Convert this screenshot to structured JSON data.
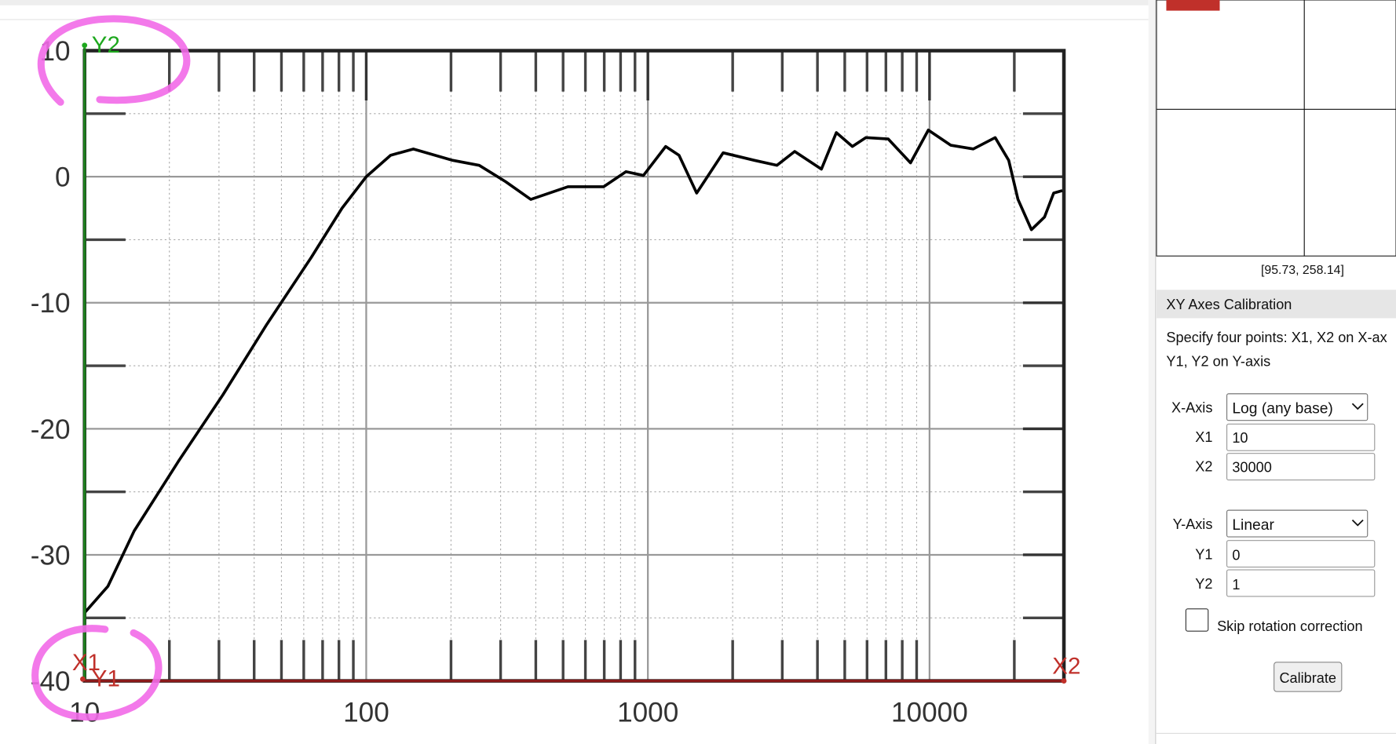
{
  "chart_data": {
    "type": "line",
    "xscale": "log",
    "grid": true,
    "color": "#000000",
    "x": [
      10,
      12.1,
      15,
      21.5,
      31,
      44.4,
      63.8,
      82,
      100,
      122,
      147,
      203,
      252,
      313,
      384,
      520,
      696,
      836,
      964,
      1157,
      1290,
      1490,
      1850,
      2390,
      2870,
      3320,
      4130,
      4670,
      5320,
      5940,
      7130,
      8560,
      9900,
      11900,
      14300,
      17100,
      19100,
      20600,
      23000,
      25600,
      27600,
      29600
    ],
    "values": [
      -34.6,
      -32.5,
      -28.1,
      -22.6,
      -17.3,
      -11.7,
      -6.4,
      -2.5,
      0,
      1.7,
      2.2,
      1.3,
      0.9,
      -0.4,
      -1.8,
      -0.8,
      -0.8,
      0.4,
      0.1,
      2.4,
      1.7,
      -1.3,
      1.9,
      1.3,
      0.9,
      2.0,
      0.6,
      3.5,
      2.4,
      3.1,
      3.0,
      1.1,
      3.7,
      2.5,
      2.2,
      3.1,
      1.3,
      -1.8,
      -4.2,
      -3.2,
      -1.3,
      -1.1
    ],
    "xlim": [
      10,
      30000
    ],
    "xticks": [
      10,
      100,
      1000,
      10000
    ],
    "ylim": [
      -40,
      10
    ],
    "yticks": [
      10,
      0,
      -10,
      -20,
      -30,
      -40
    ]
  },
  "calibration_points": {
    "x1": "X1",
    "x2": "X2",
    "y1": "Y1",
    "y2": "Y2"
  },
  "panel": {
    "cursor": "[95.73, 258.14]",
    "title": "XY Axes Calibration",
    "instructions": [
      "Specify four points: X1, X2 on X-ax",
      "Y1, Y2 on Y-axis"
    ],
    "x_axis_label": "X-Axis",
    "x_axis_type": "Log (any base)",
    "x1_label": "X1",
    "x1_value": "10",
    "x2_label": "X2",
    "x2_value": "30000",
    "y_axis_label": "Y-Axis",
    "y_axis_type": "Linear",
    "y1_label": "Y1",
    "y1_value": "0",
    "y2_label": "Y2",
    "y2_value": "1",
    "skip_rotation": "Skip rotation correction",
    "calibrate": "Calibrate"
  }
}
